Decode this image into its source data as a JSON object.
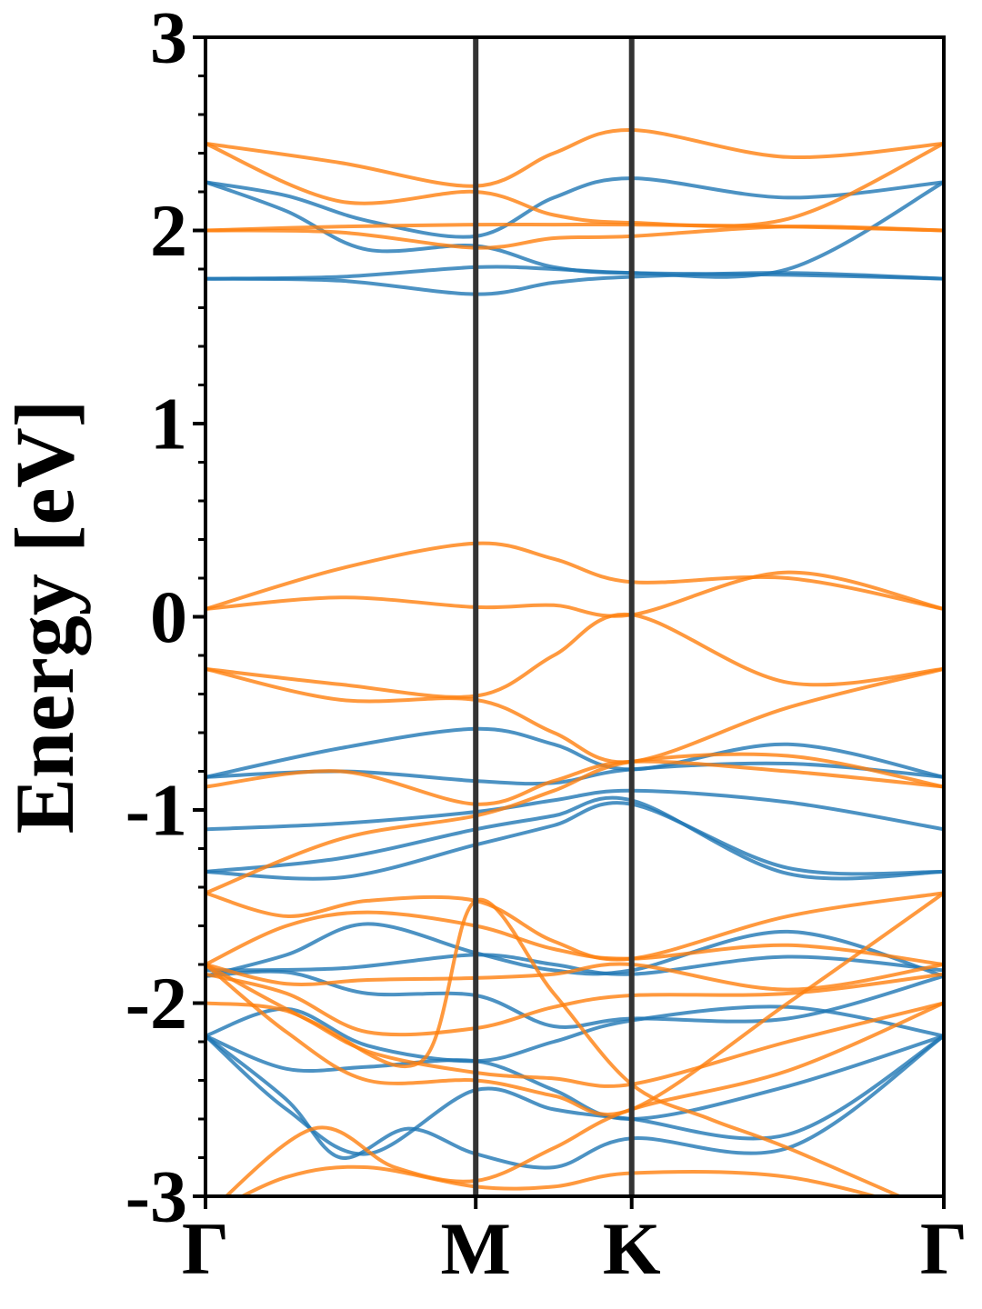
{
  "chart_data": {
    "type": "line",
    "title": "",
    "xlabel": "",
    "ylabel": "Energy [eV]",
    "ylim": [
      -3,
      3
    ],
    "y_ticks": [
      "-3",
      "-2",
      "-1",
      "0",
      "1",
      "2",
      "3"
    ],
    "y_minor_step": 0.2,
    "x_path": [
      "Γ",
      "M",
      "K",
      "Γ"
    ],
    "x_path_positions": [
      0,
      1,
      1.577,
      2.732
    ],
    "grid": false,
    "colors": {
      "spin_1": "#1f77b4",
      "spin_2": "#ff7f0e",
      "high_symmetry_line": "#333333"
    },
    "series": [
      {
        "group": "spin_1",
        "x": [
          0,
          0.5,
          1,
          1.289,
          1.577,
          2.155,
          2.732
        ],
        "values": [
          1.75,
          1.76,
          1.81,
          1.8,
          1.78,
          1.77,
          1.75
        ]
      },
      {
        "group": "spin_1",
        "x": [
          0,
          0.5,
          1,
          1.289,
          1.577,
          2.155,
          2.732
        ],
        "values": [
          1.75,
          1.74,
          1.67,
          1.73,
          1.76,
          1.78,
          1.75
        ]
      },
      {
        "group": "spin_1",
        "x": [
          0,
          0.3,
          0.6,
          1,
          1.289,
          1.577,
          2.155,
          2.732
        ],
        "values": [
          2.25,
          2.1,
          1.9,
          1.92,
          1.81,
          1.78,
          1.8,
          2.25
        ]
      },
      {
        "group": "spin_1",
        "x": [
          0,
          0.3,
          0.6,
          1,
          1.289,
          1.577,
          2.155,
          2.732
        ],
        "values": [
          2.25,
          2.18,
          2.05,
          1.97,
          2.17,
          2.27,
          2.17,
          2.25
        ]
      },
      {
        "group": "spin_1",
        "x": [
          0,
          0.5,
          1,
          1.289,
          1.577,
          2.155,
          2.732
        ],
        "values": [
          -0.83,
          -0.68,
          -0.58,
          -0.66,
          -0.79,
          -0.66,
          -0.83
        ]
      },
      {
        "group": "spin_1",
        "x": [
          0,
          0.5,
          1,
          1.289,
          1.577,
          2.155,
          2.732
        ],
        "values": [
          -0.83,
          -0.8,
          -0.85,
          -0.86,
          -0.79,
          -0.76,
          -0.83
        ]
      },
      {
        "group": "spin_1",
        "x": [
          0,
          0.5,
          1,
          1.289,
          1.577,
          2.155,
          2.732
        ],
        "values": [
          -1.1,
          -1.07,
          -1.01,
          -0.95,
          -0.9,
          -0.96,
          -1.1
        ]
      },
      {
        "group": "spin_1",
        "x": [
          0,
          0.5,
          1,
          1.289,
          1.577,
          2.155,
          2.732
        ],
        "values": [
          -1.32,
          -1.25,
          -1.1,
          -1.03,
          -0.95,
          -1.33,
          -1.32
        ]
      },
      {
        "group": "spin_1",
        "x": [
          0,
          0.5,
          1,
          1.289,
          1.577,
          2.155,
          2.732
        ],
        "values": [
          -1.32,
          -1.35,
          -1.18,
          -1.08,
          -0.97,
          -1.3,
          -1.32
        ]
      },
      {
        "group": "spin_1",
        "x": [
          0,
          0.5,
          1,
          1.289,
          1.577,
          2.155,
          2.732
        ],
        "values": [
          -1.83,
          -1.82,
          -1.75,
          -1.8,
          -1.85,
          -1.76,
          -1.83
        ]
      },
      {
        "group": "spin_1",
        "x": [
          0,
          0.3,
          0.6,
          1,
          1.289,
          1.577,
          2.155,
          2.732
        ],
        "values": [
          -1.86,
          -1.75,
          -1.59,
          -1.74,
          -1.83,
          -1.83,
          -1.63,
          -1.86
        ]
      },
      {
        "group": "spin_1",
        "x": [
          0,
          0.3,
          0.6,
          1,
          1.289,
          1.577,
          2.155,
          2.732
        ],
        "values": [
          -1.86,
          -1.84,
          -1.95,
          -1.96,
          -2.12,
          -2.08,
          -2.08,
          -1.86
        ]
      },
      {
        "group": "spin_1",
        "x": [
          0,
          0.3,
          0.6,
          1,
          1.289,
          1.577,
          2.155,
          2.732
        ],
        "values": [
          -2.17,
          -2.03,
          -2.22,
          -2.3,
          -2.2,
          -2.09,
          -2.02,
          -2.17
        ]
      },
      {
        "group": "spin_1",
        "x": [
          0,
          0.3,
          0.6,
          1,
          1.289,
          1.577,
          2.155,
          2.732
        ],
        "values": [
          -2.17,
          -2.34,
          -2.33,
          -2.3,
          -2.45,
          -2.6,
          -2.43,
          -2.17
        ]
      },
      {
        "group": "spin_1",
        "x": [
          0,
          0.3,
          0.6,
          1,
          1.289,
          1.577,
          2.155,
          2.732
        ],
        "values": [
          -2.17,
          -2.55,
          -2.78,
          -2.45,
          -2.55,
          -2.6,
          -2.68,
          -2.17
        ]
      },
      {
        "group": "spin_1",
        "x": [
          0,
          0.3,
          0.5,
          0.75,
          1,
          1.289,
          1.577,
          2.155,
          2.732
        ],
        "values": [
          -2.17,
          -2.5,
          -2.8,
          -2.65,
          -2.78,
          -2.85,
          -2.7,
          -2.75,
          -2.17
        ]
      },
      {
        "group": "spin_2",
        "x": [
          0,
          0.5,
          1,
          1.289,
          1.577,
          2.155,
          2.732
        ],
        "values": [
          2.0,
          2.02,
          2.03,
          2.03,
          2.03,
          2.02,
          2.0
        ]
      },
      {
        "group": "spin_2",
        "x": [
          0,
          0.5,
          1,
          1.289,
          1.577,
          2.155,
          2.732
        ],
        "values": [
          2.0,
          1.99,
          1.91,
          1.96,
          1.97,
          2.02,
          2.0
        ]
      },
      {
        "group": "spin_2",
        "x": [
          0,
          0.5,
          1,
          1.289,
          1.577,
          2.155,
          2.732
        ],
        "values": [
          2.45,
          2.35,
          2.23,
          2.4,
          2.52,
          2.38,
          2.45
        ]
      },
      {
        "group": "spin_2",
        "x": [
          0,
          0.5,
          1,
          1.289,
          1.577,
          2.155,
          2.732
        ],
        "values": [
          2.45,
          2.15,
          2.2,
          2.08,
          2.04,
          2.06,
          2.45
        ]
      },
      {
        "group": "spin_2",
        "x": [
          0,
          0.5,
          1,
          1.289,
          1.577,
          2.155,
          2.732
        ],
        "values": [
          0.04,
          0.25,
          0.38,
          0.3,
          0.18,
          0.2,
          0.04
        ]
      },
      {
        "group": "spin_2",
        "x": [
          0,
          0.5,
          1,
          1.289,
          1.577,
          2.155,
          2.732
        ],
        "values": [
          0.04,
          0.1,
          0.05,
          0.06,
          0.01,
          0.23,
          0.04
        ]
      },
      {
        "group": "spin_2",
        "x": [
          0,
          0.5,
          1,
          1.289,
          1.577,
          2.155,
          2.732
        ],
        "values": [
          -0.27,
          -0.35,
          -0.41,
          -0.2,
          0.01,
          -0.34,
          -0.27
        ]
      },
      {
        "group": "spin_2",
        "x": [
          0,
          0.5,
          1,
          1.289,
          1.577,
          2.155,
          2.732
        ],
        "values": [
          -0.27,
          -0.43,
          -0.43,
          -0.6,
          -0.75,
          -0.47,
          -0.27
        ]
      },
      {
        "group": "spin_2",
        "x": [
          0,
          0.5,
          1,
          1.289,
          1.577,
          2.155,
          2.732
        ],
        "values": [
          -0.88,
          -0.8,
          -0.97,
          -0.85,
          -0.75,
          -0.8,
          -0.88
        ]
      },
      {
        "group": "spin_2",
        "x": [
          0,
          0.5,
          1,
          1.289,
          1.577,
          2.155,
          2.732
        ],
        "values": [
          -1.43,
          -1.15,
          -1.03,
          -0.9,
          -0.75,
          -0.72,
          -0.88
        ]
      },
      {
        "group": "spin_2",
        "x": [
          0,
          0.3,
          0.6,
          1,
          1.289,
          1.577,
          2.155,
          2.732
        ],
        "values": [
          -1.43,
          -1.55,
          -1.47,
          -1.47,
          -1.68,
          -1.77,
          -1.55,
          -1.43
        ]
      },
      {
        "group": "spin_2",
        "x": [
          0,
          0.3,
          0.6,
          1,
          1.289,
          1.577,
          2.155,
          2.732
        ],
        "values": [
          -1.8,
          -1.6,
          -1.53,
          -1.6,
          -1.72,
          -1.77,
          -1.7,
          -1.8
        ]
      },
      {
        "group": "spin_2",
        "x": [
          0,
          0.3,
          0.6,
          1,
          1.289,
          1.577,
          2.155,
          2.732
        ],
        "values": [
          -1.8,
          -1.9,
          -1.88,
          -1.87,
          -1.85,
          -1.8,
          -1.93,
          -1.8
        ]
      },
      {
        "group": "spin_2",
        "x": [
          0,
          0.3,
          0.6,
          1,
          1.289,
          1.577,
          2.155,
          2.732
        ],
        "values": [
          -1.85,
          -1.95,
          -2.15,
          -2.13,
          -2.02,
          -1.96,
          -1.95,
          -1.85
        ]
      },
      {
        "group": "spin_2",
        "x": [
          0,
          0.3,
          0.6,
          1,
          1.289,
          1.577,
          2.155,
          2.732
        ],
        "values": [
          -2.0,
          -2.04,
          -2.25,
          -2.36,
          -2.39,
          -2.42,
          -2.2,
          -2.0
        ]
      },
      {
        "group": "spin_2",
        "x": [
          0,
          0.3,
          0.6,
          1,
          1.289,
          1.577,
          2.155,
          2.732
        ],
        "values": [
          -1.8,
          -2.15,
          -2.4,
          -2.4,
          -2.48,
          -2.55,
          -2.0,
          -1.43
        ]
      },
      {
        "group": "spin_2",
        "x": [
          0,
          0.4,
          0.7,
          1,
          1.289,
          1.577,
          2.155,
          2.732
        ],
        "values": [
          -3.1,
          -2.65,
          -2.85,
          -2.92,
          -2.75,
          -2.55,
          -2.35,
          -2.0
        ]
      },
      {
        "group": "spin_2",
        "x": [
          0,
          0.3,
          0.6,
          1,
          1.289,
          1.577,
          2.155,
          2.732
        ],
        "values": [
          -3.1,
          -2.9,
          -2.85,
          -2.95,
          -2.95,
          -2.88,
          -2.9,
          -3.1
        ]
      },
      {
        "group": "spin_2",
        "x": [
          0,
          0.4,
          0.8,
          1,
          1.289,
          1.577,
          1.866,
          2.155,
          2.732
        ],
        "values": [
          -1.8,
          -2.1,
          -2.3,
          -1.47,
          -1.95,
          -2.42,
          -2.6,
          -2.75,
          -3.1
        ]
      }
    ]
  }
}
